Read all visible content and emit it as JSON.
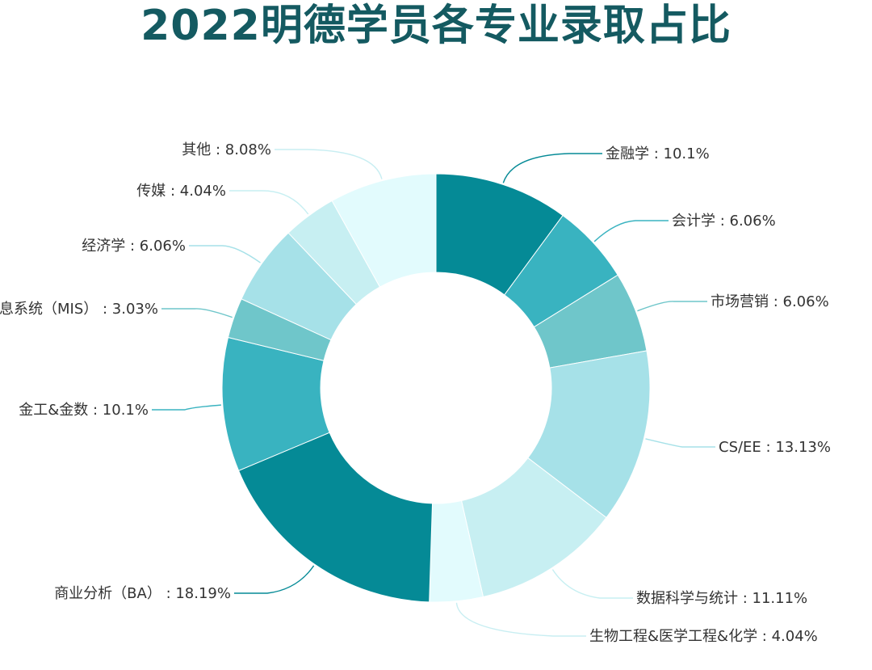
{
  "chart_data": {
    "type": "pie",
    "donut": true,
    "title": "2022明德学员各专业录取占比",
    "label_separator": " : ",
    "percent_suffix": "%",
    "start_angle_deg": 0,
    "direction": "clockwise",
    "slices": [
      {
        "name": "金融学",
        "value": 10.1,
        "color": "#058a96",
        "side": "right"
      },
      {
        "name": "会计学",
        "value": 6.06,
        "color": "#39b3c0",
        "side": "right"
      },
      {
        "name": "市场营销",
        "value": 6.06,
        "color": "#6fc6ca",
        "side": "right"
      },
      {
        "name": "CS/EE",
        "value": 13.13,
        "color": "#a6e1e8",
        "side": "right"
      },
      {
        "name": "数据科学与统计",
        "value": 11.11,
        "color": "#c7eff2",
        "side": "right"
      },
      {
        "name": "生物工程&医学工程&化学",
        "value": 4.04,
        "color": "#e2fbfd",
        "side": "right"
      },
      {
        "name": "商业分析（BA）",
        "value": 18.19,
        "color": "#058a96",
        "side": "left"
      },
      {
        "name": "金工&金数",
        "value": 10.1,
        "color": "#39b3c0",
        "side": "left"
      },
      {
        "name": "信息系统（MIS）",
        "value": 3.03,
        "color": "#6fc6ca",
        "side": "left"
      },
      {
        "name": "经济学",
        "value": 6.06,
        "color": "#a6e1e8",
        "side": "left"
      },
      {
        "name": "传媒",
        "value": 4.04,
        "color": "#c7eff2",
        "side": "left"
      },
      {
        "name": "其他",
        "value": 8.08,
        "color": "#e2fbfd",
        "side": "left"
      }
    ]
  }
}
